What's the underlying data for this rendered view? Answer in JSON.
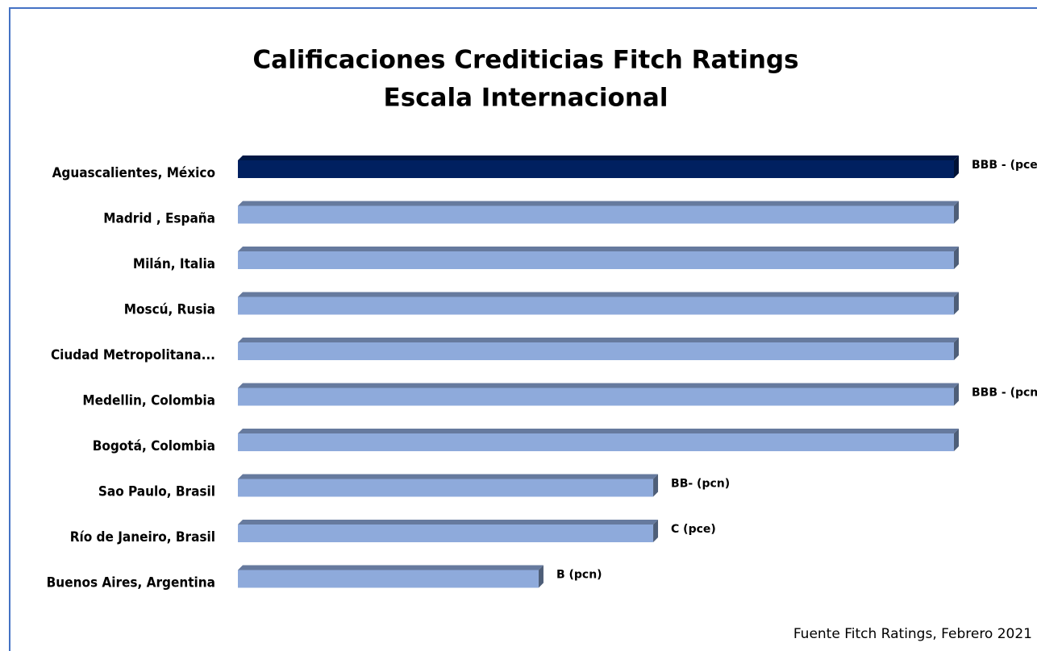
{
  "chart_data": {
    "type": "barh",
    "title": "Calificaciones Crediticias Fitch Ratings",
    "subtitle": "Escala Internacional",
    "categories": [
      "Aguascalientes, México",
      "Madrid , España",
      "Milán, Italia",
      "Moscú, Rusia",
      "Ciudad Metropolitana...",
      "Medellin, Colombia",
      "Bogotá, Colombia",
      "Sao Paulo, Brasil",
      "Río de Janeiro, Brasil",
      "Buenos Aires, Argentina"
    ],
    "values": [
      100,
      100,
      100,
      100,
      100,
      100,
      100,
      58,
      58,
      42
    ],
    "value_labels": [
      "BBB - (pce)",
      null,
      null,
      null,
      null,
      "BBB - (pcn)",
      null,
      "BB- (pcn)",
      "C (pce)",
      "B (pcn)"
    ],
    "colors": [
      "#002060",
      "#8eaadb",
      "#8eaadb",
      "#8eaadb",
      "#8eaadb",
      "#8eaadb",
      "#8eaadb",
      "#8eaadb",
      "#8eaadb",
      "#8eaadb"
    ],
    "xlim": [
      0,
      100
    ],
    "source": "Fuente Fitch Ratings, Febrero 2021"
  }
}
